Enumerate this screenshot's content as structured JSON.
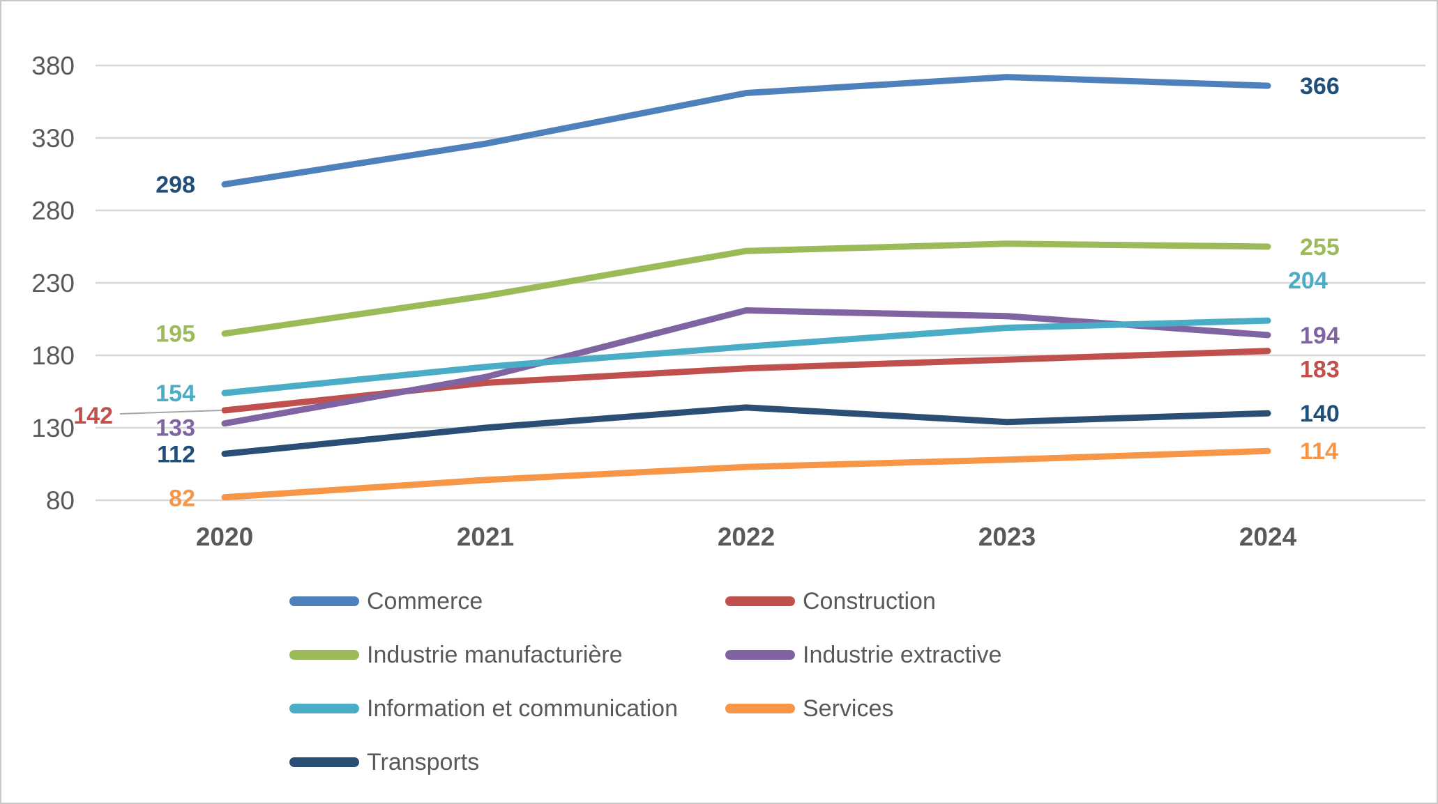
{
  "chart_data": {
    "type": "line",
    "title": "",
    "x_labels": [
      "2020",
      "2021",
      "2022",
      "2023",
      "2024"
    ],
    "y_ticks": [
      380,
      330,
      280,
      230,
      180,
      130,
      80
    ],
    "ylim": [
      80,
      380
    ],
    "grid": true,
    "legend_position": "bottom",
    "series": [
      {
        "name": "Commerce",
        "color": "#4e80bc",
        "label_color": "#1f4e79",
        "values": [
          298,
          326,
          361,
          372,
          366
        ],
        "start_label": "298",
        "end_label": "366"
      },
      {
        "name": "Construction",
        "color": "#c0504d",
        "label_color": "#c0504d",
        "values": [
          142,
          161,
          171,
          177,
          183
        ],
        "start_label": "142",
        "end_label": "183"
      },
      {
        "name": "Industrie manufacturière",
        "color": "#9bbb59",
        "label_color": "#9bbb59",
        "values": [
          195,
          221,
          252,
          257,
          255
        ],
        "start_label": "195",
        "end_label": "255"
      },
      {
        "name": "Industrie extractive",
        "color": "#8064a2",
        "label_color": "#8064a2",
        "values": [
          133,
          165,
          211,
          207,
          194
        ],
        "start_label": "133",
        "end_label": "194"
      },
      {
        "name": "Information et communication",
        "color": "#4bacc6",
        "label_color": "#4bacc6",
        "values": [
          154,
          172,
          186,
          199,
          204
        ],
        "start_label": "154",
        "end_label": "204"
      },
      {
        "name": "Services",
        "color": "#f79646",
        "label_color": "#f79646",
        "values": [
          82,
          94,
          103,
          108,
          114
        ],
        "start_label": "82",
        "end_label": "114"
      },
      {
        "name": "Transports",
        "color": "#2b4e75",
        "label_color": "#1f4e79",
        "values": [
          112,
          130,
          144,
          134,
          140
        ],
        "start_label": "112",
        "end_label": "140"
      }
    ],
    "colors": {
      "grid": "#d8d8d8",
      "axis_text": "#595959",
      "leader_line": "#a6a6a6",
      "background": "#ffffff",
      "border": "#c9c7c5"
    }
  }
}
